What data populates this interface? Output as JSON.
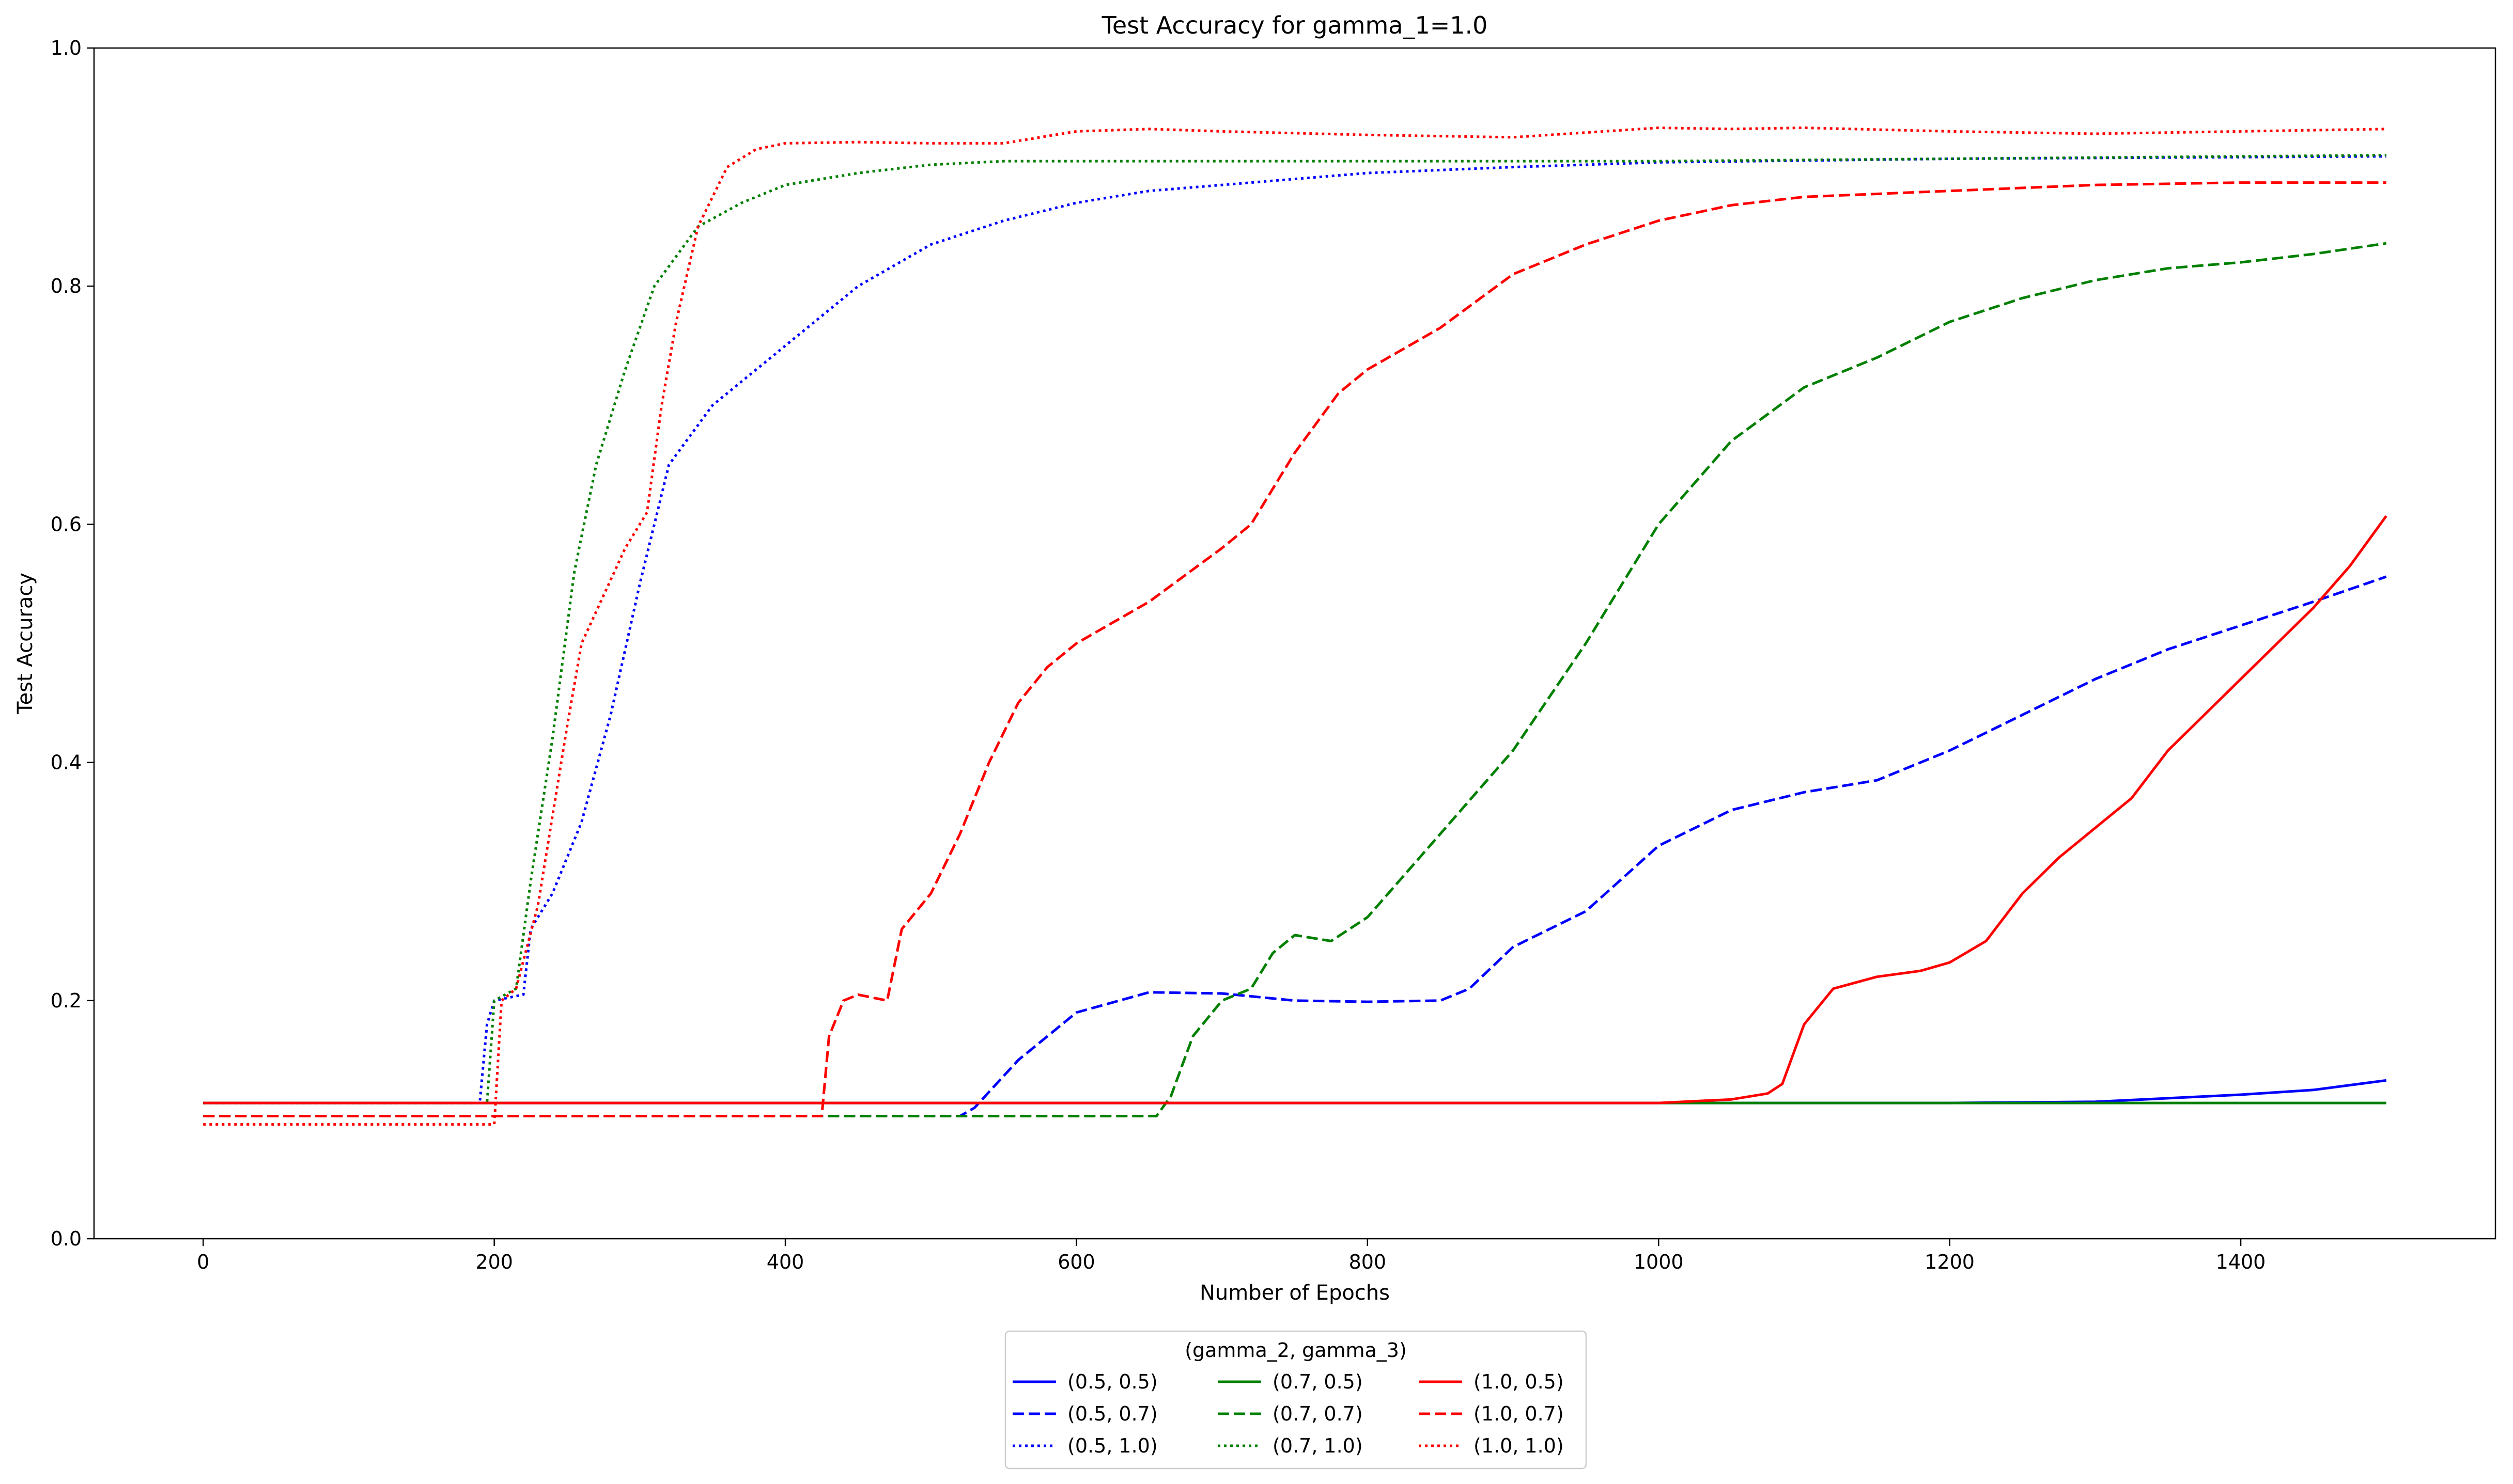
{
  "chart_data": {
    "type": "line",
    "title": "Test Accuracy for gamma_1=1.0",
    "xlabel": "Number of Epochs",
    "ylabel": "Test Accuracy",
    "xlim": [
      -75,
      1575
    ],
    "ylim": [
      0.0,
      1.0
    ],
    "x_ticks": [
      0,
      200,
      400,
      600,
      800,
      1000,
      1200,
      1400
    ],
    "y_ticks": [
      0.0,
      0.2,
      0.4,
      0.6,
      0.8,
      1.0
    ],
    "x_tick_labels": [
      "0",
      "200",
      "400",
      "600",
      "800",
      "1000",
      "1200",
      "1400"
    ],
    "y_tick_labels": [
      "0.0",
      "0.2",
      "0.4",
      "0.6",
      "0.8",
      "1.0"
    ],
    "grid": false,
    "legend": {
      "title": "(gamma_2, gamma_3)",
      "placement": "below-center",
      "columns": 3
    },
    "series": [
      {
        "name": "(0.5, 0.5)",
        "color": "#0000ff",
        "dash": "solid",
        "points": [
          [
            0,
            0.114
          ],
          [
            1000,
            0.114
          ],
          [
            1200,
            0.114
          ],
          [
            1300,
            0.115
          ],
          [
            1350,
            0.118
          ],
          [
            1400,
            0.121
          ],
          [
            1450,
            0.125
          ],
          [
            1500,
            0.133
          ]
        ]
      },
      {
        "name": "(0.5, 0.7)",
        "color": "#0000ff",
        "dash": "dashed",
        "points": [
          [
            0,
            0.103
          ],
          [
            520,
            0.103
          ],
          [
            530,
            0.11
          ],
          [
            560,
            0.15
          ],
          [
            600,
            0.19
          ],
          [
            650,
            0.207
          ],
          [
            700,
            0.206
          ],
          [
            750,
            0.2
          ],
          [
            800,
            0.199
          ],
          [
            850,
            0.2
          ],
          [
            870,
            0.21
          ],
          [
            900,
            0.245
          ],
          [
            950,
            0.275
          ],
          [
            1000,
            0.33
          ],
          [
            1050,
            0.36
          ],
          [
            1100,
            0.375
          ],
          [
            1150,
            0.385
          ],
          [
            1200,
            0.41
          ],
          [
            1250,
            0.44
          ],
          [
            1300,
            0.47
          ],
          [
            1350,
            0.495
          ],
          [
            1400,
            0.515
          ],
          [
            1450,
            0.535
          ],
          [
            1500,
            0.556
          ]
        ]
      },
      {
        "name": "(0.5, 1.0)",
        "color": "#0000ff",
        "dash": "dotted",
        "points": [
          [
            0,
            0.114
          ],
          [
            190,
            0.114
          ],
          [
            195,
            0.18
          ],
          [
            200,
            0.2
          ],
          [
            220,
            0.205
          ],
          [
            225,
            0.26
          ],
          [
            240,
            0.29
          ],
          [
            260,
            0.35
          ],
          [
            280,
            0.44
          ],
          [
            300,
            0.55
          ],
          [
            320,
            0.65
          ],
          [
            350,
            0.7
          ],
          [
            400,
            0.75
          ],
          [
            450,
            0.8
          ],
          [
            500,
            0.835
          ],
          [
            550,
            0.855
          ],
          [
            600,
            0.87
          ],
          [
            650,
            0.88
          ],
          [
            700,
            0.885
          ],
          [
            800,
            0.895
          ],
          [
            900,
            0.9
          ],
          [
            1000,
            0.904
          ],
          [
            1200,
            0.907
          ],
          [
            1500,
            0.909
          ]
        ]
      },
      {
        "name": "(0.7, 0.5)",
        "color": "#008000",
        "dash": "solid",
        "points": [
          [
            0,
            0.114
          ],
          [
            1500,
            0.114
          ]
        ]
      },
      {
        "name": "(0.7, 0.7)",
        "color": "#008000",
        "dash": "dashed",
        "points": [
          [
            0,
            0.103
          ],
          [
            655,
            0.103
          ],
          [
            665,
            0.12
          ],
          [
            680,
            0.17
          ],
          [
            700,
            0.2
          ],
          [
            720,
            0.21
          ],
          [
            735,
            0.24
          ],
          [
            750,
            0.255
          ],
          [
            775,
            0.25
          ],
          [
            800,
            0.27
          ],
          [
            850,
            0.34
          ],
          [
            900,
            0.41
          ],
          [
            950,
            0.5
          ],
          [
            1000,
            0.6
          ],
          [
            1050,
            0.67
          ],
          [
            1100,
            0.715
          ],
          [
            1150,
            0.74
          ],
          [
            1200,
            0.77
          ],
          [
            1250,
            0.79
          ],
          [
            1300,
            0.805
          ],
          [
            1350,
            0.815
          ],
          [
            1400,
            0.82
          ],
          [
            1450,
            0.827
          ],
          [
            1500,
            0.836
          ]
        ]
      },
      {
        "name": "(0.7, 1.0)",
        "color": "#008000",
        "dash": "dotted",
        "points": [
          [
            0,
            0.114
          ],
          [
            195,
            0.114
          ],
          [
            200,
            0.2
          ],
          [
            215,
            0.21
          ],
          [
            225,
            0.3
          ],
          [
            240,
            0.42
          ],
          [
            255,
            0.56
          ],
          [
            270,
            0.65
          ],
          [
            290,
            0.73
          ],
          [
            310,
            0.8
          ],
          [
            340,
            0.85
          ],
          [
            370,
            0.87
          ],
          [
            400,
            0.885
          ],
          [
            450,
            0.895
          ],
          [
            500,
            0.902
          ],
          [
            550,
            0.905
          ],
          [
            600,
            0.905
          ],
          [
            700,
            0.905
          ],
          [
            1000,
            0.905
          ],
          [
            1500,
            0.91
          ]
        ]
      },
      {
        "name": "(1.0, 0.5)",
        "color": "#ff0000",
        "dash": "solid",
        "points": [
          [
            0,
            0.114
          ],
          [
            1000,
            0.114
          ],
          [
            1050,
            0.117
          ],
          [
            1075,
            0.122
          ],
          [
            1085,
            0.13
          ],
          [
            1100,
            0.18
          ],
          [
            1120,
            0.21
          ],
          [
            1150,
            0.22
          ],
          [
            1180,
            0.225
          ],
          [
            1200,
            0.232
          ],
          [
            1225,
            0.25
          ],
          [
            1250,
            0.29
          ],
          [
            1275,
            0.32
          ],
          [
            1300,
            0.345
          ],
          [
            1325,
            0.37
          ],
          [
            1350,
            0.41
          ],
          [
            1375,
            0.44
          ],
          [
            1400,
            0.47
          ],
          [
            1425,
            0.5
          ],
          [
            1450,
            0.53
          ],
          [
            1475,
            0.565
          ],
          [
            1500,
            0.607
          ]
        ]
      },
      {
        "name": "(1.0, 0.7)",
        "color": "#ff0000",
        "dash": "dashed",
        "points": [
          [
            0,
            0.103
          ],
          [
            425,
            0.103
          ],
          [
            430,
            0.17
          ],
          [
            440,
            0.2
          ],
          [
            450,
            0.205
          ],
          [
            470,
            0.2
          ],
          [
            480,
            0.26
          ],
          [
            500,
            0.29
          ],
          [
            520,
            0.34
          ],
          [
            540,
            0.4
          ],
          [
            560,
            0.45
          ],
          [
            580,
            0.48
          ],
          [
            600,
            0.5
          ],
          [
            650,
            0.535
          ],
          [
            700,
            0.58
          ],
          [
            720,
            0.6
          ],
          [
            750,
            0.66
          ],
          [
            780,
            0.71
          ],
          [
            800,
            0.73
          ],
          [
            850,
            0.765
          ],
          [
            900,
            0.81
          ],
          [
            950,
            0.835
          ],
          [
            1000,
            0.855
          ],
          [
            1050,
            0.868
          ],
          [
            1100,
            0.875
          ],
          [
            1200,
            0.88
          ],
          [
            1300,
            0.885
          ],
          [
            1400,
            0.887
          ],
          [
            1500,
            0.887
          ]
        ]
      },
      {
        "name": "(1.0, 1.0)",
        "color": "#ff0000",
        "dash": "dotted",
        "points": [
          [
            0,
            0.096
          ],
          [
            200,
            0.096
          ],
          [
            205,
            0.2
          ],
          [
            215,
            0.21
          ],
          [
            230,
            0.28
          ],
          [
            250,
            0.43
          ],
          [
            260,
            0.5
          ],
          [
            275,
            0.54
          ],
          [
            290,
            0.58
          ],
          [
            305,
            0.61
          ],
          [
            315,
            0.7
          ],
          [
            325,
            0.77
          ],
          [
            340,
            0.85
          ],
          [
            360,
            0.9
          ],
          [
            380,
            0.915
          ],
          [
            400,
            0.92
          ],
          [
            450,
            0.921
          ],
          [
            500,
            0.92
          ],
          [
            550,
            0.92
          ],
          [
            600,
            0.93
          ],
          [
            650,
            0.932
          ],
          [
            700,
            0.93
          ],
          [
            800,
            0.927
          ],
          [
            900,
            0.925
          ],
          [
            1000,
            0.933
          ],
          [
            1050,
            0.932
          ],
          [
            1100,
            0.933
          ],
          [
            1200,
            0.93
          ],
          [
            1300,
            0.928
          ],
          [
            1400,
            0.93
          ],
          [
            1500,
            0.932
          ]
        ]
      }
    ]
  }
}
